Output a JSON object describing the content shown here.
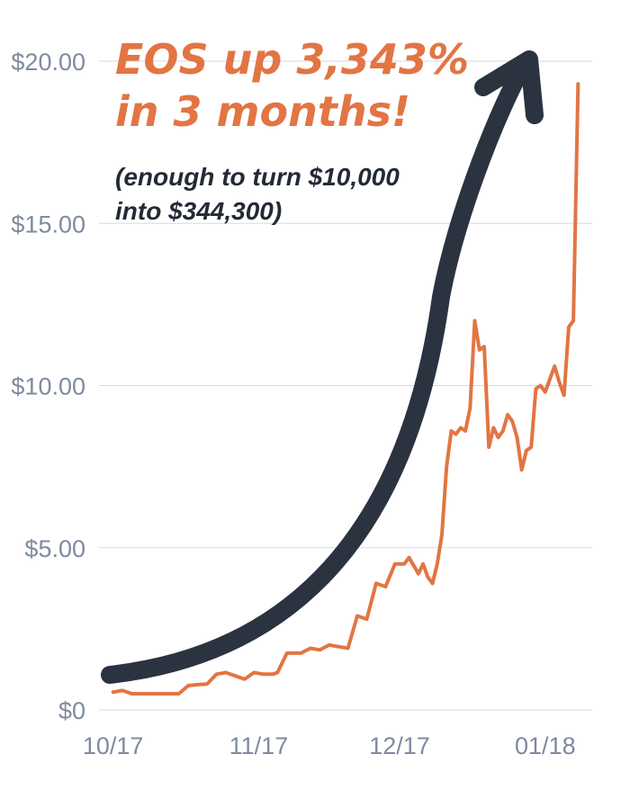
{
  "colors": {
    "series": "#e27543",
    "arrow": "#2b3240",
    "tick": "#7f8aa0",
    "grid": "#d6dae2",
    "headline": "#e27543",
    "subtitle": "#232a36"
  },
  "headline": {
    "line1": "EOS up 3,343%",
    "line2": "in 3 months!"
  },
  "subtitle": {
    "line1": "(enough to turn $10,000",
    "line2": "into $344,300)"
  },
  "chart_data": {
    "type": "line",
    "title": "EOS up 3,343% in 3 months!",
    "subtitle": "(enough to turn $10,000 into $344,300)",
    "xlabel": "",
    "ylabel": "",
    "ylim": [
      0,
      20
    ],
    "grid": true,
    "legend": "none",
    "y_ticks": [
      {
        "value": 0,
        "label": "$0"
      },
      {
        "value": 5,
        "label": "$5.00"
      },
      {
        "value": 10,
        "label": "$10.00"
      },
      {
        "value": 15,
        "label": "$15.00"
      },
      {
        "value": 20,
        "label": "$20.00"
      }
    ],
    "x_ticks": [
      {
        "value": 0,
        "label": "10/17"
      },
      {
        "value": 31,
        "label": "11/17"
      },
      {
        "value": 61,
        "label": "12/17"
      },
      {
        "value": 92,
        "label": "01/18"
      }
    ],
    "xlim": [
      -3,
      102
    ],
    "series": [
      {
        "x": [
          0,
          2,
          4,
          6,
          8,
          10,
          12,
          14,
          16,
          18,
          20,
          22,
          24,
          25,
          27,
          28,
          30,
          32,
          34,
          35,
          37,
          38,
          40,
          42,
          44,
          46,
          48,
          50,
          52,
          54,
          56,
          58,
          60,
          62,
          63,
          65,
          66,
          67,
          68,
          69,
          70,
          71,
          72,
          73,
          74,
          75,
          76,
          77,
          78,
          79,
          80,
          81,
          82,
          83,
          84,
          85,
          86,
          87,
          88,
          89,
          90,
          91,
          92,
          93,
          94,
          95,
          96,
          97,
          98,
          99
        ],
        "y": [
          0.55,
          0.6,
          0.5,
          0.5,
          0.5,
          0.5,
          0.5,
          0.5,
          0.75,
          0.78,
          0.8,
          1.1,
          1.15,
          1.1,
          1.0,
          0.95,
          1.15,
          1.1,
          1.1,
          1.15,
          1.75,
          1.75,
          1.75,
          1.9,
          1.85,
          2.0,
          1.95,
          1.9,
          2.9,
          2.8,
          3.9,
          3.8,
          4.5,
          4.5,
          4.7,
          4.2,
          4.5,
          4.1,
          3.9,
          4.5,
          5.4,
          7.5,
          8.6,
          8.5,
          8.7,
          8.6,
          9.3,
          12.0,
          11.1,
          11.2,
          8.1,
          8.7,
          8.4,
          8.6,
          9.1,
          8.9,
          8.4,
          7.4,
          8.0,
          8.1,
          9.9,
          10.0,
          9.8,
          10.2,
          10.6,
          10.1,
          9.7,
          11.8,
          12.0,
          19.3
        ]
      }
    ]
  }
}
